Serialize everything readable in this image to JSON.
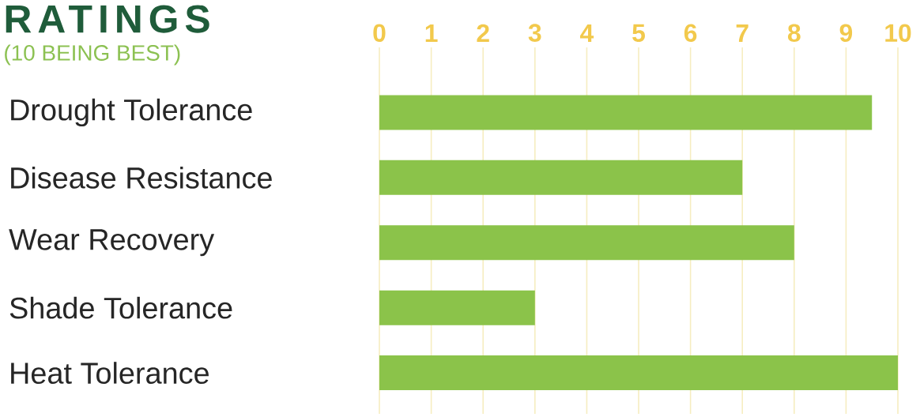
{
  "chart_data": {
    "type": "bar",
    "orientation": "horizontal",
    "title": "RATINGS",
    "subtitle": "(10 BEING BEST)",
    "categories": [
      "Drought Tolerance",
      "Disease Resistance",
      "Wear Recovery",
      "Shade Tolerance",
      "Heat Tolerance"
    ],
    "values": [
      9.5,
      7,
      8,
      3,
      10
    ],
    "color": "#8bc34a",
    "xlim": [
      0,
      10
    ],
    "xticks": [
      0,
      1,
      2,
      3,
      4,
      5,
      6,
      7,
      8,
      9,
      10
    ],
    "grid": "x"
  }
}
